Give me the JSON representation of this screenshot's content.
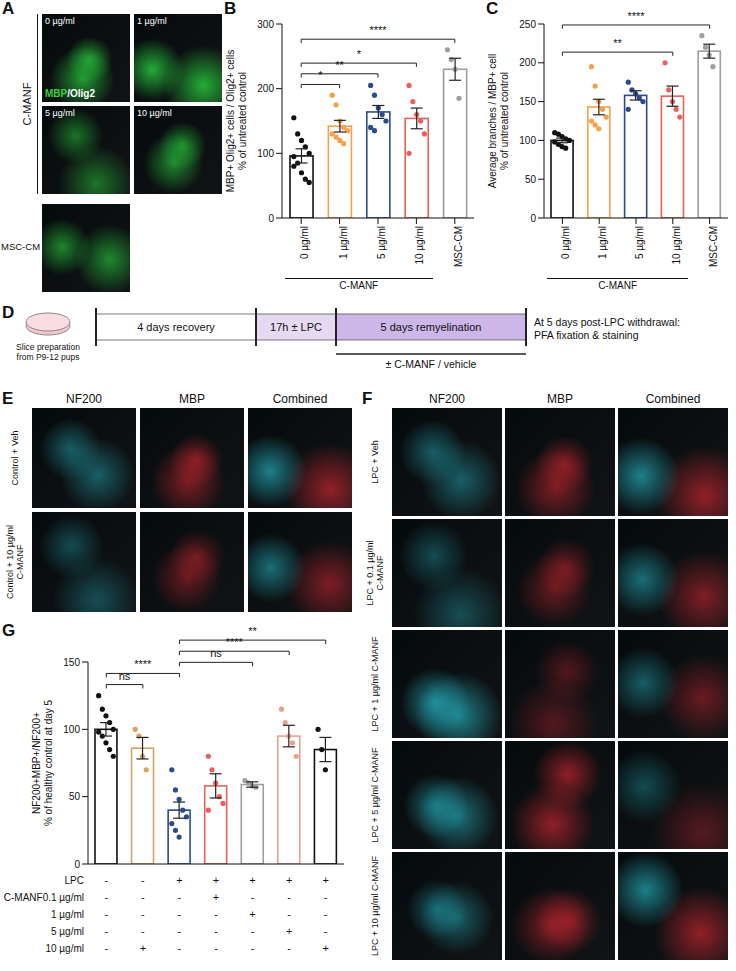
{
  "panels": {
    "A": {
      "letter": "A",
      "group_label": "C-MANF",
      "tiles": [
        "0 µg/ml",
        "1 µg/ml",
        "5 µg/ml",
        "10 µg/ml"
      ],
      "extra_tile": "MSC-CM",
      "stain_legend": [
        {
          "text": "MBP",
          "color": "#3cd23c"
        },
        {
          "text": "/Olig2",
          "color": "#ffffff"
        }
      ]
    },
    "D": {
      "letter": "D",
      "steps": [
        "Slice preparation from P9-12 pups",
        "4 days recovery",
        "17h ± LPC",
        "5 days remyelination"
      ],
      "treatment": "± C-MANF / vehicle",
      "endpoint": "At 5 days post-LPC withdrawal: PFA fixation & staining"
    },
    "E": {
      "letter": "E",
      "columns": [
        "NF200",
        "MBP",
        "Combined"
      ],
      "rows": [
        "Control + Veh",
        "Control + 10 µg/ml C-MANF"
      ]
    },
    "F": {
      "letter": "F",
      "columns": [
        "NF200",
        "MBP",
        "Combined"
      ],
      "rows": [
        "LPC + Veh",
        "LPC + 0.1 µg/ml C-MANF",
        "LPC + 1 µg/ml C-MANF",
        "LPC + 5 µg/ml C-MANF",
        "LPC + 10 µg/ml C-MANF"
      ]
    }
  },
  "chart_data": [
    {
      "letter": "B",
      "type": "bar",
      "y_label": [
        "MBP+ Olig2+ cells / Olig2+ cells",
        "% of untreated control"
      ],
      "categories": [
        "0 µg/ml",
        "1 µg/ml",
        "5 µg/ml",
        "10 µg/ml",
        "MSC-CM"
      ],
      "group_label": "C-MANF",
      "group": [
        0,
        3
      ],
      "values": [
        96,
        142,
        164,
        154,
        230
      ],
      "errors": [
        11,
        9,
        10,
        16,
        17
      ],
      "points": [
        [
          155,
          130,
          120,
          110,
          100,
          95,
          85,
          70,
          60,
          55,
          80
        ],
        [
          190,
          175,
          150,
          140,
          135,
          130,
          125,
          120,
          115
        ],
        [
          205,
          190,
          170,
          160,
          150,
          140,
          135
        ],
        [
          205,
          180,
          160,
          150,
          130,
          100
        ],
        [
          260,
          245,
          230,
          185
        ]
      ],
      "colors": [
        "#111111",
        "#f5a04a",
        "#2b4c8c",
        "#e8605a",
        "#9e9e9e"
      ],
      "ylim": [
        0,
        300
      ],
      "yticks": [
        0,
        100,
        200,
        300
      ],
      "comparisons": [
        {
          "from": 0,
          "to": 1,
          "label": "*"
        },
        {
          "from": 0,
          "to": 2,
          "label": "**"
        },
        {
          "from": 0,
          "to": 3,
          "label": "*"
        },
        {
          "from": 0,
          "to": 4,
          "label": "****"
        }
      ]
    },
    {
      "letter": "C",
      "type": "bar",
      "y_label": [
        "Average branches / MBP+ cell",
        "% of untreated control"
      ],
      "categories": [
        "0 µg/ml",
        "1 µg/ml",
        "5 µg/ml",
        "10 µg/ml",
        "MSC-CM"
      ],
      "group_label": "C-MANF",
      "group": [
        0,
        3
      ],
      "values": [
        100,
        143,
        158,
        157,
        215
      ],
      "errors": [
        3,
        10,
        6,
        13,
        9
      ],
      "points": [
        [
          110,
          108,
          105,
          102,
          100,
          98,
          95,
          92,
          90
        ],
        [
          195,
          170,
          150,
          140,
          130,
          125,
          120,
          115
        ],
        [
          175,
          165,
          160,
          155,
          150,
          140
        ],
        [
          200,
          165,
          150,
          140,
          130
        ],
        [
          235,
          220,
          210,
          195
        ]
      ],
      "colors": [
        "#111111",
        "#f5a04a",
        "#2b4c8c",
        "#e8605a",
        "#9e9e9e"
      ],
      "ylim": [
        0,
        250
      ],
      "yticks": [
        0,
        50,
        100,
        150,
        200,
        250
      ],
      "comparisons": [
        {
          "from": 0,
          "to": 3,
          "label": "**"
        },
        {
          "from": 0,
          "to": 4,
          "label": "****"
        }
      ]
    },
    {
      "letter": "G",
      "type": "bar",
      "y_label": [
        "NF200+MBP+/NF200+",
        "% of healthy control at day 5"
      ],
      "categories": [
        null,
        null,
        null,
        null,
        null,
        null,
        null
      ],
      "tick_labels": "y",
      "values": [
        100,
        86,
        40,
        58,
        59,
        95,
        85
      ],
      "errors": [
        5,
        8,
        6,
        9,
        2,
        8,
        9
      ],
      "points": [
        [
          125,
          115,
          110,
          105,
          100,
          98,
          95,
          90,
          85,
          80
        ],
        [
          100,
          95,
          80,
          70
        ],
        [
          70,
          55,
          48,
          40,
          35,
          30,
          25,
          20
        ],
        [
          80,
          70,
          60,
          50,
          45,
          40
        ],
        [
          62,
          60,
          58,
          57
        ],
        [
          115,
          105,
          95,
          90,
          80
        ],
        [
          100,
          85,
          70
        ]
      ],
      "colors": [
        "#111111",
        "#d9a060",
        "#2b4c8c",
        "#e8605a",
        "#9e9e9e",
        "#e8a090",
        "#111111"
      ],
      "ylim": [
        0,
        150
      ],
      "yticks": [
        0,
        50,
        100,
        150
      ],
      "comparisons": [
        {
          "from": 0,
          "to": 1,
          "label": "ns"
        },
        {
          "from": 0,
          "to": 2,
          "label": "****"
        },
        {
          "from": 2,
          "to": 4,
          "label": "ns"
        },
        {
          "from": 2,
          "to": 5,
          "label": "****"
        },
        {
          "from": 2,
          "to": 6,
          "label": "**"
        }
      ],
      "treatment_table": {
        "rows": [
          {
            "label": "LPC",
            "marks": [
              "-",
              "-",
              "+",
              "+",
              "+",
              "+",
              "+"
            ]
          },
          {
            "label": "C-MANF0.1 µg/ml",
            "marks": [
              "-",
              "-",
              "-",
              "+",
              "-",
              "-",
              "-"
            ]
          },
          {
            "label": "1 µg/ml",
            "marks": [
              "-",
              "-",
              "-",
              "-",
              "+",
              "-",
              "-"
            ]
          },
          {
            "label": "5 µg/ml",
            "marks": [
              "-",
              "-",
              "-",
              "-",
              "-",
              "+",
              "-"
            ]
          },
          {
            "label": "10 µg/ml",
            "marks": [
              "-",
              "+",
              "-",
              "-",
              "-",
              "-",
              "+"
            ]
          }
        ]
      }
    }
  ]
}
